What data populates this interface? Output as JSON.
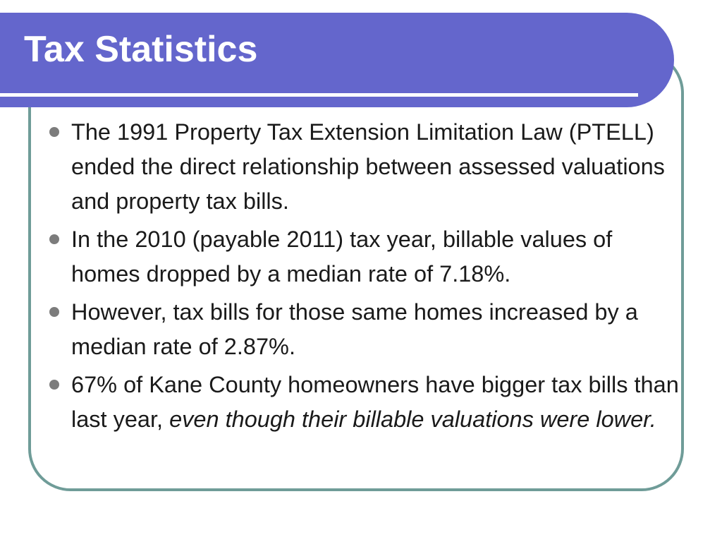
{
  "slide": {
    "title": "Tax Statistics",
    "bullets": [
      {
        "text": "The 1991 Property Tax Extension Limitation Law (PTELL) ended the direct relationship between assessed valuations and property tax bills."
      },
      {
        "text": "In the 2010 (payable 2011) tax year, billable values of homes dropped by a median rate of 7.18%."
      },
      {
        "text": "However, tax bills for those same homes increased by a median rate of 2.87%."
      },
      {
        "text": "67% of Kane County homeowners have bigger tax bills than last year, ",
        "emphasis": "even though their billable valuations were lower."
      }
    ]
  },
  "colors": {
    "title_bar": "#6466cc",
    "frame_border": "#6f9c98",
    "bullet_dot": "#7c7c7c",
    "text": "#1a1a1a"
  }
}
